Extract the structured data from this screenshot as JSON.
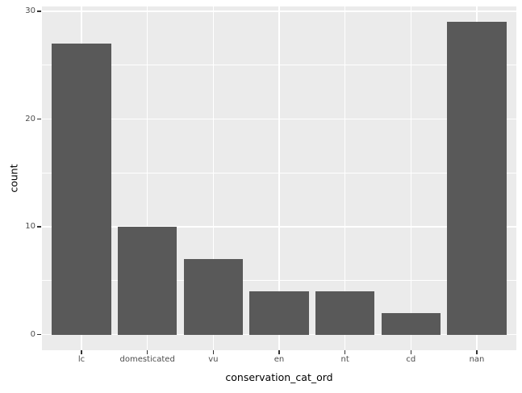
{
  "chart_data": {
    "type": "bar",
    "categories": [
      "lc",
      "domesticated",
      "vu",
      "en",
      "nt",
      "cd",
      "nan"
    ],
    "values": [
      27,
      10,
      7,
      4,
      4,
      2,
      29
    ],
    "title": "",
    "xlabel": "conservation_cat_ord",
    "ylabel": "count",
    "y_major_ticks": [
      0,
      10,
      20,
      30
    ],
    "y_minor_ticks": [
      5,
      15,
      25
    ],
    "ylim": [
      -1.45,
      30.45
    ],
    "x_expand_units": 0.6,
    "bar_width_fraction": 0.9,
    "legend_position": "none",
    "grid": "on",
    "colors": {
      "bar_fill": "#595959",
      "panel_background": "#EBEBEB",
      "gridline": "#FFFFFF",
      "figure_background": "#FFFFFF",
      "tick_label": "#4D4D4D",
      "tick_mark": "#333333",
      "axis_title": "#000000"
    }
  }
}
